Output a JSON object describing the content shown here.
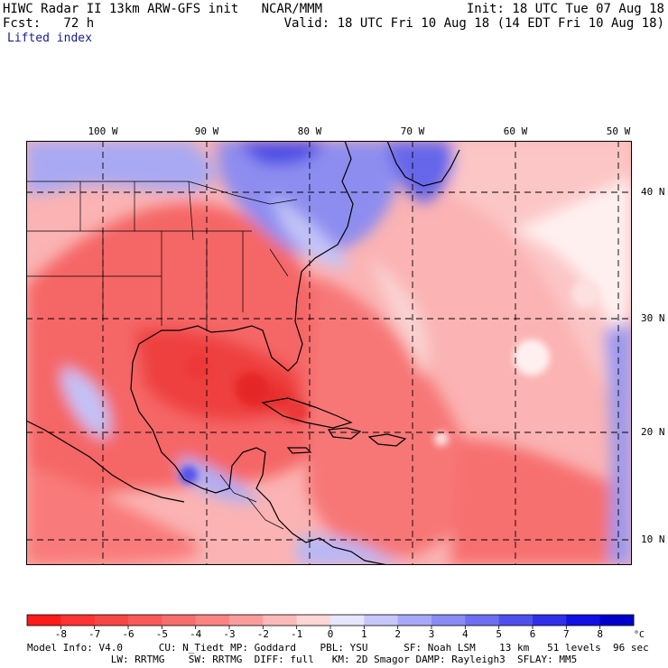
{
  "header": {
    "left_line1": "HIWC Radar II 13km ARW-GFS init   NCAR/MMM",
    "right_line1": "Init: 18 UTC Tue 07 Aug 18",
    "left_line2": "Fcst:   72 h",
    "right_line2": "Valid: 18 UTC Fri 10 Aug 18 (14 EDT Fri 10 Aug 18)",
    "field": "Lifted index"
  },
  "map": {
    "lon_labels": [
      "100 W",
      "90 W",
      "80 W",
      "70 W",
      "60 W",
      "50 W"
    ],
    "lat_labels": [
      "40 N",
      "30 N",
      "20 N",
      "10 N"
    ]
  },
  "colorbar": {
    "values": [
      "-8",
      "-7",
      "-6",
      "-5",
      "-4",
      "-3",
      "-2",
      "-1",
      "0",
      "1",
      "2",
      "3",
      "4",
      "5",
      "6",
      "7",
      "8"
    ],
    "unit": "°C",
    "colors": [
      "#ff1a1a",
      "#ff3333",
      "#f84545",
      "#f95959",
      "#f86d6d",
      "#fa8484",
      "#fb9c9c",
      "#fcb9b9",
      "#ffd6d6",
      "#e6e6ff",
      "#c7c7fb",
      "#a8a8f8",
      "#8b8bf5",
      "#6e6ef2",
      "#4f4fee",
      "#3030ea",
      "#1010e4",
      "#0000cc"
    ]
  },
  "footer": {
    "line1": "Model Info: V4.0      CU: N_Tiedt MP: Goddard    PBL: YSU      SF: Noah LSM    13 km   51 levels  96 sec",
    "line2": "              LW: RRTMG    SW: RRTMG  DIFF: full   KM: 2D Smagor DAMP: Rayleigh3  SFLAY: MM5"
  }
}
